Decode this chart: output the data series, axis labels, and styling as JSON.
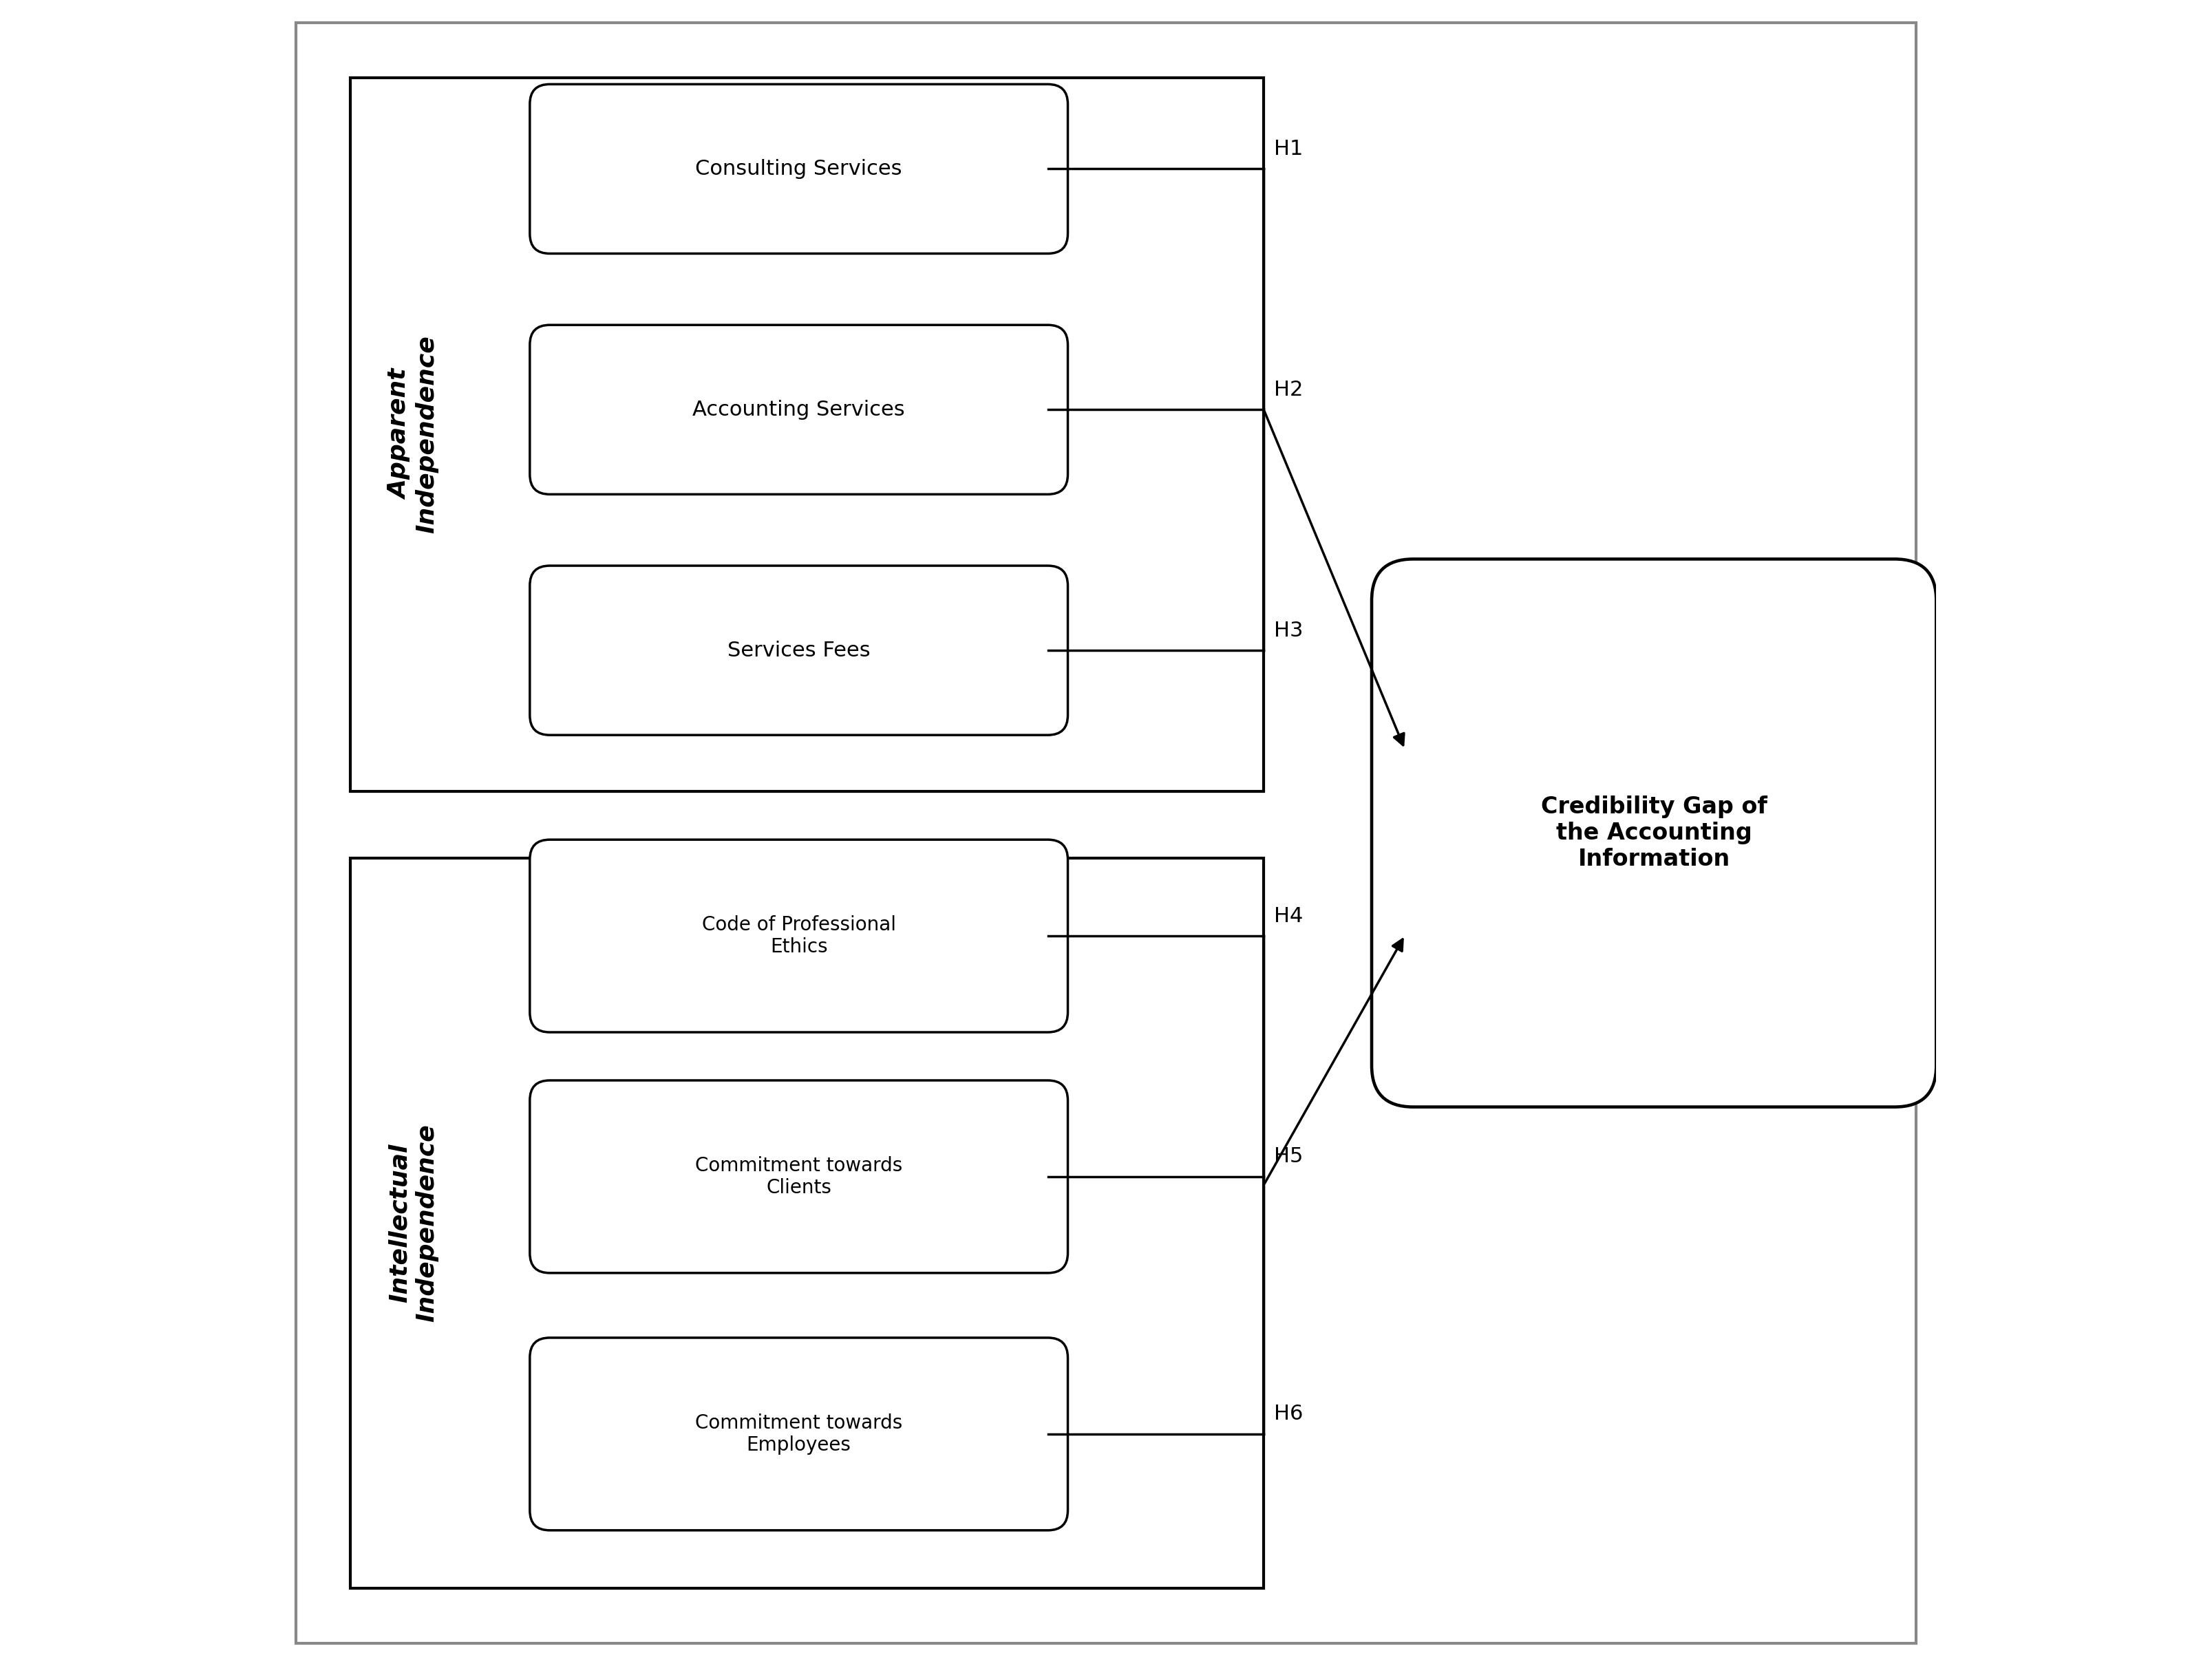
{
  "background_color": "#ffffff",
  "outer_border_color": "#888888",
  "box_color": "#000000",
  "ellipse_color": "#000000",
  "arrow_color": "#000000",
  "text_color": "#000000",
  "fig_width": 32.14,
  "fig_height": 24.21,
  "top_group_label": "Apparent\nIndependence",
  "bottom_group_label": "Intellectual\nIndependence",
  "top_ellipses": [
    "Consulting Services",
    "Accounting Services",
    "Services Fees"
  ],
  "bottom_ellipses": [
    "Code of Professional\nEthics",
    "Commitment towards\nClients",
    "Commitment towards\nEmployees"
  ],
  "top_hypotheses": [
    "H1",
    "H2",
    "H3"
  ],
  "bottom_hypotheses": [
    "H4",
    "H5",
    "H6"
  ],
  "center_label": "Credibility Gap of\nthe Accounting\nInformation",
  "xlim": [
    0,
    10
  ],
  "ylim": [
    0,
    10
  ]
}
